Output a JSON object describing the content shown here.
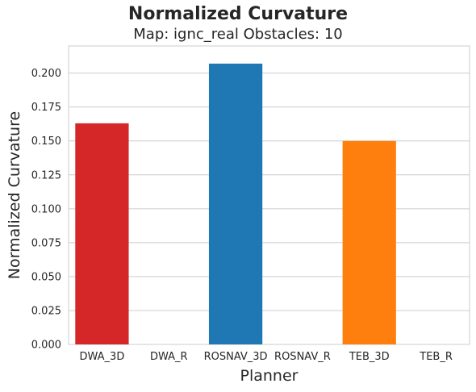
{
  "chart_data": {
    "type": "bar",
    "title": "Normalized Curvature",
    "subtitle": "Map: ignc_real Obstacles: 10",
    "xlabel": "Planner",
    "ylabel": "Normalized Curvature",
    "categories": [
      "DWA_3D",
      "DWA_R",
      "ROSNAV_3D",
      "ROSNAV_R",
      "TEB_3D",
      "TEB_R"
    ],
    "values": [
      0.163,
      0,
      0.207,
      0,
      0.15,
      0
    ],
    "bar_colors": [
      "#d62728",
      "#d62728",
      "#1f77b4",
      "#1f77b4",
      "#ff7f0e",
      "#ff7f0e"
    ],
    "ylim": [
      0,
      0.22
    ],
    "yticks": [
      "0.000",
      "0.025",
      "0.050",
      "0.075",
      "0.100",
      "0.125",
      "0.150",
      "0.175",
      "0.200"
    ],
    "grid": true,
    "legend": "none"
  }
}
